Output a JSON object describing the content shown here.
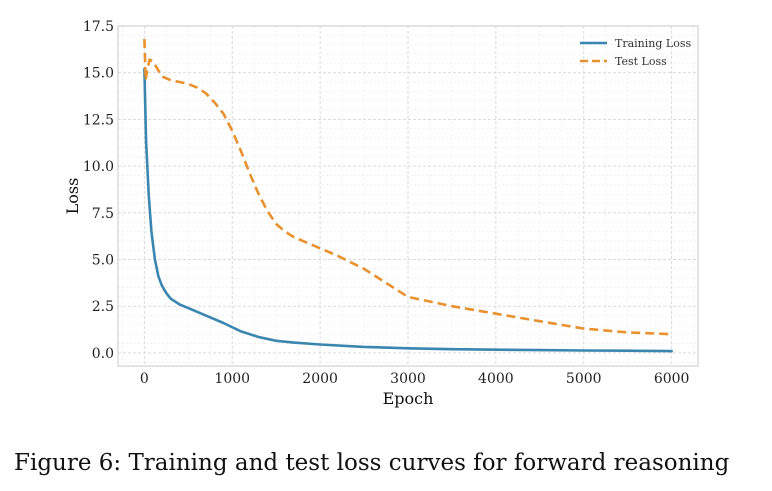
{
  "caption": "Figure 6: Training and test loss curves for forward reasoning",
  "chart_data": {
    "type": "line",
    "title": "",
    "xlabel": "Epoch",
    "ylabel": "Loss",
    "xlim": [
      -300,
      6300
    ],
    "ylim": [
      -0.7,
      17.5
    ],
    "xticks": [
      0,
      1000,
      2000,
      3000,
      4000,
      5000,
      6000
    ],
    "yticks": [
      0.0,
      2.5,
      5.0,
      7.5,
      10.0,
      12.5,
      15.0,
      17.5
    ],
    "ytick_labels": [
      "0.0",
      "2.5",
      "5.0",
      "7.5",
      "10.0",
      "12.5",
      "15.0",
      "17.5"
    ],
    "grid": true,
    "legend": "top-right",
    "series": [
      {
        "name": "Training Loss",
        "color": "#3b86b0",
        "style": "solid",
        "x": [
          0,
          20,
          50,
          80,
          120,
          160,
          200,
          250,
          300,
          400,
          500,
          700,
          900,
          1100,
          1300,
          1500,
          1700,
          2000,
          2500,
          3000,
          3500,
          4000,
          4500,
          5000,
          5500,
          6000
        ],
        "y": [
          15.2,
          11.3,
          8.4,
          6.5,
          5.0,
          4.1,
          3.6,
          3.2,
          2.9,
          2.6,
          2.4,
          2.0,
          1.6,
          1.15,
          0.85,
          0.65,
          0.55,
          0.45,
          0.32,
          0.25,
          0.2,
          0.17,
          0.15,
          0.13,
          0.12,
          0.1
        ]
      },
      {
        "name": "Test Loss",
        "color": "#e8912e",
        "style": "dashed",
        "x": [
          0,
          15,
          30,
          60,
          100,
          150,
          200,
          300,
          400,
          500,
          600,
          700,
          800,
          900,
          1000,
          1100,
          1200,
          1300,
          1400,
          1500,
          1600,
          1700,
          1800,
          2000,
          2200,
          2500,
          2800,
          3000,
          3500,
          4000,
          4500,
          5000,
          5500,
          6000
        ],
        "y": [
          16.8,
          14.6,
          15.1,
          15.7,
          15.6,
          15.2,
          14.8,
          14.6,
          14.5,
          14.4,
          14.2,
          13.9,
          13.4,
          12.8,
          11.9,
          10.8,
          9.6,
          8.5,
          7.6,
          6.9,
          6.5,
          6.2,
          6.0,
          5.6,
          5.2,
          4.5,
          3.6,
          3.0,
          2.5,
          2.1,
          1.7,
          1.3,
          1.1,
          1.0
        ]
      }
    ]
  }
}
